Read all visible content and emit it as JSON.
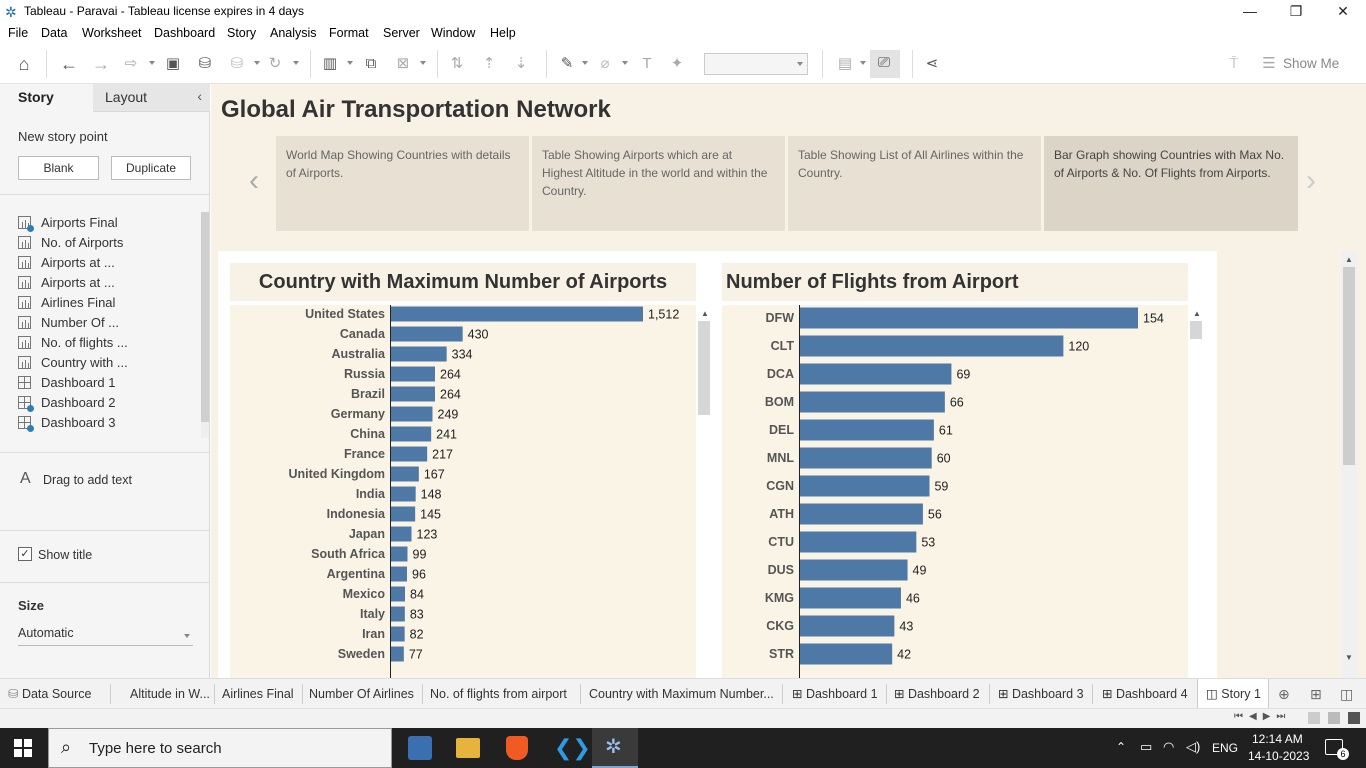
{
  "window": {
    "title": "Tableau - Paravai - Tableau license expires in 4 days"
  },
  "menu": [
    "File",
    "Data",
    "Worksheet",
    "Dashboard",
    "Story",
    "Analysis",
    "Format",
    "Server",
    "Window",
    "Help"
  ],
  "toolbar": {
    "show_me": "Show Me"
  },
  "sidebar": {
    "tab_story": "Story",
    "tab_layout": "Layout",
    "new_story_point": "New story point",
    "blank": "Blank",
    "duplicate": "Duplicate",
    "sheets": [
      {
        "label": "Airports Final",
        "icon": "bar-chart-icon",
        "used": true
      },
      {
        "label": "No. of Airports",
        "icon": "bar-chart-icon",
        "used": false
      },
      {
        "label": "Airports at ...",
        "icon": "bar-chart-icon",
        "used": false
      },
      {
        "label": "Airports at ...",
        "icon": "bar-chart-icon",
        "used": false
      },
      {
        "label": "Airlines Final",
        "icon": "bar-chart-icon",
        "used": false
      },
      {
        "label": "Number Of ...",
        "icon": "bar-chart-icon",
        "used": false
      },
      {
        "label": "No. of flights ...",
        "icon": "bar-chart-icon",
        "used": false
      },
      {
        "label": "Country with ...",
        "icon": "bar-chart-icon",
        "used": false
      },
      {
        "label": "Dashboard 1",
        "icon": "dashboard-icon",
        "used": false
      },
      {
        "label": "Dashboard 2",
        "icon": "dashboard-icon",
        "used": true
      },
      {
        "label": "Dashboard 3",
        "icon": "dashboard-icon",
        "used": true
      }
    ],
    "drag_text": "Drag to add text",
    "show_title": "Show title",
    "size_label": "Size",
    "size_value": "Automatic"
  },
  "story": {
    "title": "Global Air Transportation Network",
    "points": [
      "World Map Showing Countries with details of Airports.",
      "Table Showing Airports which are at Highest Altitude in the world and within the Country.",
      "Table Showing List of All Airlines within the Country.",
      "Bar Graph showing Countries with Max No. of Airports & No. Of Flights from Airports."
    ]
  },
  "chart_data": [
    {
      "type": "bar",
      "orientation": "horizontal",
      "title": "Country with Maximum Number of Airports",
      "color": "#4e79a7",
      "categories": [
        "United States",
        "Canada",
        "Australia",
        "Russia",
        "Brazil",
        "Germany",
        "China",
        "France",
        "United Kingdom",
        "India",
        "Indonesia",
        "Japan",
        "South Africa",
        "Argentina",
        "Mexico",
        "Italy",
        "Iran",
        "Sweden"
      ],
      "values": [
        1512,
        430,
        334,
        264,
        264,
        249,
        241,
        217,
        167,
        148,
        145,
        123,
        99,
        96,
        84,
        83,
        82,
        77
      ],
      "value_labels": [
        "1,512",
        "430",
        "334",
        "264",
        "264",
        "249",
        "241",
        "217",
        "167",
        "148",
        "145",
        "123",
        "99",
        "96",
        "84",
        "83",
        "82",
        "77"
      ],
      "xlim": [
        0,
        1512
      ]
    },
    {
      "type": "bar",
      "orientation": "horizontal",
      "title": "Number of Flights from Airport",
      "color": "#4e79a7",
      "categories": [
        "DFW",
        "CLT",
        "DCA",
        "BOM",
        "DEL",
        "MNL",
        "CGN",
        "ATH",
        "CTU",
        "DUS",
        "KMG",
        "CKG",
        "STR"
      ],
      "values": [
        154,
        120,
        69,
        66,
        61,
        60,
        59,
        56,
        53,
        49,
        46,
        43,
        42
      ],
      "value_labels": [
        "154",
        "120",
        "69",
        "66",
        "61",
        "60",
        "59",
        "56",
        "53",
        "49",
        "46",
        "43",
        "42"
      ],
      "xlim": [
        0,
        154
      ]
    }
  ],
  "bottom_tabs": [
    "Data Source",
    "Altitude in W...",
    "Airlines Final",
    "Number Of Airlines",
    "No. of flights from airport",
    "Country with Maximum Number...",
    "Dashboard 1",
    "Dashboard 2",
    "Dashboard 3",
    "Dashboard 4",
    "Story 1"
  ],
  "taskbar": {
    "search_placeholder": "Type here to search",
    "lang": "ENG",
    "time": "12:14 AM",
    "date": "14-10-2023",
    "notifications": "6"
  }
}
